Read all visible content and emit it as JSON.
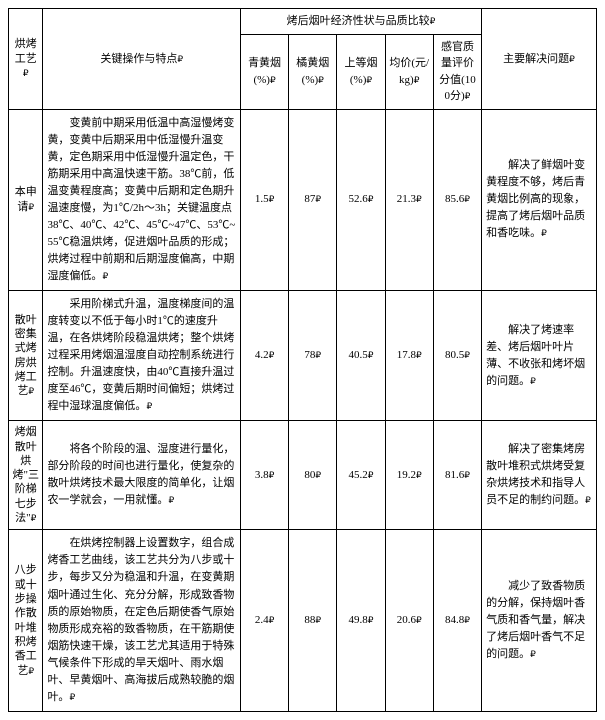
{
  "header": {
    "col_process": "烘烤工艺",
    "col_keyop": "关键操作与特点",
    "col_group": "烤后烟叶经济性状与品质比较",
    "col_solve": "主要解决问题",
    "sub1": "青黄烟(%)",
    "sub2": "橘黄烟(%)",
    "sub3": "上等烟(%)",
    "sub4": "均价(元/kg)",
    "sub5": "感官质量评价分值(100分)"
  },
  "rows": [
    {
      "process": "本申请",
      "desc": "变黄前中期采用低温中高湿慢烤变黄，变黄中后期采用中低湿慢升温变黄，定色期采用中低湿慢升温定色，干筋期采用中高温快速干筋。38℃前，低温变黄程度高；变黄中后期和定色期升温速度慢，为1℃/2h～3h；关键温度点38℃、40℃、42℃、45℃~47℃、53℃~55℃稳温烘烤，促进烟叶品质的形成；烘烤过程中前期和后期湿度偏高，中期湿度偏低。",
      "v1": "1.5",
      "v2": "87",
      "v3": "52.6",
      "v4": "21.3",
      "v5": "85.6",
      "solve": "解决了鲜烟叶变黄程度不够，烤后青黄烟比例高的现象，提高了烤后烟叶品质和香吃味。"
    },
    {
      "process": "散叶密集式烤房烘烤工艺",
      "desc": "采用阶梯式升温，温度梯度间的温度转变以不低于每小时1℃的速度升温，在各烘烤阶段稳温烘烤；整个烘烤过程采用烤烟温湿度自动控制系统进行控制。升温速度快，由40℃直接升温过度至46℃，变黄后期时间偏短；烘烤过程中湿球温度偏低。",
      "v1": "4.2",
      "v2": "78",
      "v3": "40.5",
      "v4": "17.8",
      "v5": "80.5",
      "solve": "解决了烤速率差、烤后烟叶叶片薄、不收张和烤坏烟的问题。"
    },
    {
      "process": "烤烟散叶烘烤\"三阶梯七步法\"",
      "desc": "将各个阶段的温、湿度进行量化，部分阶段的时间也进行量化，使复杂的散叶烘烤技术最大限度的简单化，让烟农一学就会，一用就懂。",
      "v1": "3.8",
      "v2": "80",
      "v3": "45.2",
      "v4": "19.2",
      "v5": "81.6",
      "solve": "解决了密集烤房散叶堆积式烘烤受复杂烘烤技术和指导人员不足的制约问题。"
    },
    {
      "process": "八步或十步操作散叶堆积烤香工艺",
      "desc": "在烘烤控制器上设置数字，组合成烤香工艺曲线，该工艺共分为八步或十步，每步又分为稳温和升温，在变黄期烟叶通过生化、充分分解，形成致香物质的原始物质，在定色后期使香气原始物质形成充裕的致香物质，在干筋期使烟筋快速干燥，该工艺尤其适用于特殊气候条件下形成的旱天烟叶、雨水烟叶、早黄烟叶、高海拔后成熟较脆的烟叶。",
      "v1": "2.4",
      "v2": "88",
      "v3": "49.8",
      "v4": "20.6",
      "v5": "84.8",
      "solve": "减少了致香物质的分解，保持烟叶香气质和香气量，解决了烤后烟叶香气不足的问题。"
    }
  ]
}
